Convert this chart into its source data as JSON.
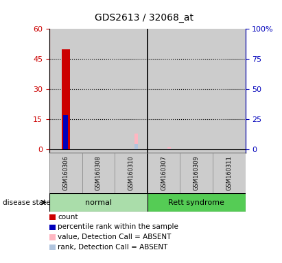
{
  "title": "GDS2613 / 32068_at",
  "samples": [
    "GSM160306",
    "GSM160308",
    "GSM160310",
    "GSM160307",
    "GSM160309",
    "GSM160311"
  ],
  "groups": [
    "normal",
    "normal",
    "normal",
    "Rett syndrome",
    "Rett syndrome",
    "Rett syndrome"
  ],
  "group_colors": {
    "normal": "#90EE90",
    "Rett syndrome": "#32CD32"
  },
  "count_values": [
    50,
    0,
    0,
    0,
    0,
    0
  ],
  "percentile_values": [
    17,
    0,
    0,
    0,
    0,
    0
  ],
  "absent_value_values": [
    0,
    0,
    8,
    1,
    0,
    0
  ],
  "absent_rank_values": [
    0,
    0,
    3,
    0.5,
    0,
    0
  ],
  "ylim_left": [
    -1.5,
    60
  ],
  "ylim_right": [
    -2.5,
    100
  ],
  "yticks_left": [
    0,
    15,
    30,
    45,
    60
  ],
  "yticks_right": [
    0,
    25,
    50,
    75,
    100
  ],
  "ytick_labels_left": [
    "0",
    "15",
    "30",
    "45",
    "60"
  ],
  "ytick_labels_right": [
    "0",
    "25",
    "50",
    "75",
    "100%"
  ],
  "color_count": "#CC0000",
  "color_percentile": "#0000BB",
  "color_absent_value": "#FFB6C1",
  "color_absent_rank": "#B0C4DE",
  "bar_width": 0.25,
  "disease_state_label": "disease state",
  "legend_items": [
    {
      "label": "count",
      "color": "#CC0000"
    },
    {
      "label": "percentile rank within the sample",
      "color": "#0000BB"
    },
    {
      "label": "value, Detection Call = ABSENT",
      "color": "#FFB6C1"
    },
    {
      "label": "rank, Detection Call = ABSENT",
      "color": "#B0C4DE"
    }
  ]
}
